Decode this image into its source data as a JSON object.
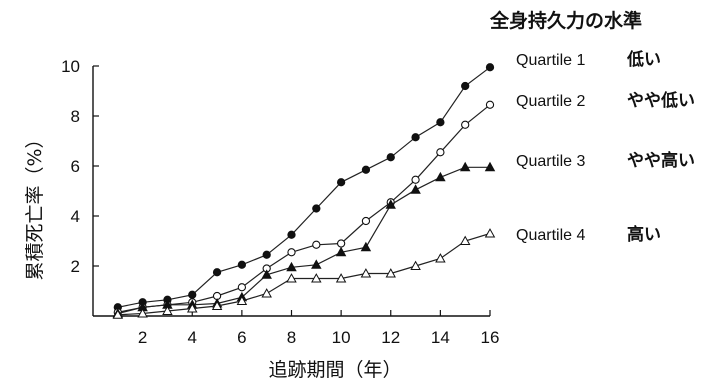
{
  "chart_data": {
    "type": "line",
    "title": "",
    "xlabel": "追跡期間（年）",
    "ylabel": "累積死亡率（%）",
    "xlim": [
      0,
      16
    ],
    "ylim": [
      0,
      10
    ],
    "xticks": [
      "2",
      "4",
      "6",
      "8",
      "10",
      "12",
      "14",
      "16"
    ],
    "yticks": [
      "2",
      "4",
      "6",
      "8",
      "10"
    ],
    "grid": false,
    "legend": {
      "title": "全身持久力の水準",
      "placement": "right",
      "entries": [
        {
          "label": "Quartile 1",
          "desc": "低い"
        },
        {
          "label": "Quartile 2",
          "desc": "やや低い"
        },
        {
          "label": "Quartile 3",
          "desc": "やや高い"
        },
        {
          "label": "Quartile 4",
          "desc": "高い"
        }
      ]
    },
    "series": [
      {
        "name": "Quartile 1",
        "marker": "circle-filled",
        "x": [
          1,
          2,
          3,
          4,
          5,
          6,
          7,
          8,
          9,
          10,
          11,
          12,
          13,
          14,
          15,
          16
        ],
        "y": [
          0.35,
          0.55,
          0.65,
          0.85,
          1.75,
          2.05,
          2.45,
          3.25,
          4.3,
          5.35,
          5.85,
          6.35,
          7.15,
          7.75,
          9.2,
          9.95
        ]
      },
      {
        "name": "Quartile 2",
        "marker": "circle-open",
        "x": [
          1,
          2,
          3,
          4,
          5,
          6,
          7,
          8,
          9,
          10,
          11,
          12,
          13,
          14,
          15,
          16
        ],
        "y": [
          0.15,
          0.35,
          0.45,
          0.55,
          0.8,
          1.15,
          1.9,
          2.55,
          2.85,
          2.9,
          3.8,
          4.55,
          5.45,
          6.55,
          7.65,
          8.45
        ]
      },
      {
        "name": "Quartile 3",
        "marker": "triangle-filled",
        "x": [
          1,
          2,
          3,
          4,
          5,
          6,
          7,
          8,
          9,
          10,
          11,
          12,
          13,
          14,
          15,
          16
        ],
        "y": [
          0.1,
          0.35,
          0.45,
          0.45,
          0.5,
          0.75,
          1.65,
          1.95,
          2.05,
          2.55,
          2.75,
          4.45,
          5.05,
          5.55,
          5.95,
          5.95
        ]
      },
      {
        "name": "Quartile 4",
        "marker": "triangle-open",
        "x": [
          1,
          2,
          3,
          4,
          5,
          6,
          7,
          8,
          9,
          10,
          11,
          12,
          13,
          14,
          15,
          16
        ],
        "y": [
          0.05,
          0.1,
          0.2,
          0.3,
          0.4,
          0.6,
          0.9,
          1.5,
          1.5,
          1.5,
          1.7,
          1.7,
          2.0,
          2.3,
          3.0,
          3.3
        ]
      }
    ]
  }
}
